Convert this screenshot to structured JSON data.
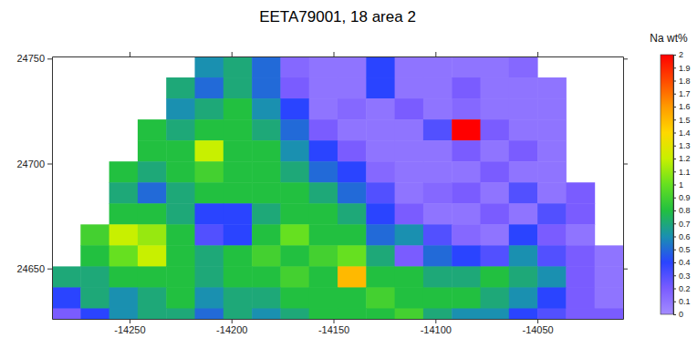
{
  "chart_data": {
    "type": "heatmap",
    "title": "EETA79001, 18 area 2",
    "x": [
      -14281,
      -14267,
      -14253,
      -14239,
      -14225,
      -14211,
      -14197,
      -14183,
      -14169,
      -14155,
      -14141,
      -14127,
      -14113,
      -14099,
      -14085,
      -14071,
      -14057,
      -14043,
      -14029,
      -14015
    ],
    "y": [
      24746,
      24736,
      24726,
      24716,
      24706,
      24696,
      24686,
      24676,
      24666,
      24656,
      24646,
      24636,
      24626
    ],
    "z": [
      [
        null,
        null,
        null,
        null,
        null,
        0.6,
        0.7,
        0.5,
        0.15,
        0.1,
        0.1,
        0.4,
        0.1,
        0.1,
        0.1,
        0.1,
        0.15,
        null,
        null,
        null
      ],
      [
        null,
        null,
        null,
        null,
        0.7,
        0.5,
        0.7,
        0.5,
        0.2,
        0.1,
        0.1,
        0.4,
        0.1,
        0.1,
        0.2,
        0.1,
        0.1,
        0.1,
        null,
        null
      ],
      [
        null,
        null,
        null,
        null,
        0.6,
        0.7,
        0.8,
        0.6,
        0.4,
        0.1,
        0.15,
        0.1,
        0.2,
        0.1,
        0.15,
        0.1,
        0.1,
        0.1,
        null,
        null
      ],
      [
        null,
        null,
        null,
        0.8,
        0.7,
        0.8,
        0.8,
        0.7,
        0.5,
        0.2,
        0.1,
        0.1,
        0.1,
        0.3,
        2.0,
        0.2,
        0.1,
        0.1,
        null,
        null
      ],
      [
        null,
        null,
        null,
        0.8,
        0.8,
        1.2,
        0.8,
        0.8,
        0.6,
        0.4,
        0.2,
        0.1,
        0.1,
        0.1,
        0.2,
        0.1,
        0.2,
        0.1,
        null,
        null
      ],
      [
        null,
        null,
        0.8,
        0.7,
        0.8,
        0.9,
        0.8,
        0.8,
        0.7,
        0.5,
        0.4,
        0.15,
        0.1,
        0.1,
        0.1,
        0.2,
        0.1,
        0.1,
        null,
        null
      ],
      [
        null,
        null,
        0.7,
        0.5,
        0.7,
        0.8,
        0.8,
        0.8,
        0.8,
        0.7,
        0.5,
        0.3,
        0.1,
        0.15,
        0.2,
        0.1,
        0.3,
        0.1,
        0.2,
        null
      ],
      [
        null,
        null,
        0.8,
        0.8,
        0.7,
        0.4,
        0.4,
        0.7,
        0.8,
        0.8,
        0.7,
        0.4,
        0.2,
        0.1,
        0.1,
        0.2,
        0.1,
        0.3,
        0.2,
        null
      ],
      [
        null,
        0.9,
        1.2,
        1.1,
        0.8,
        0.3,
        0.4,
        0.8,
        1.0,
        0.8,
        0.8,
        0.5,
        0.6,
        0.3,
        0.15,
        0.1,
        0.4,
        0.2,
        0.1,
        null
      ],
      [
        null,
        0.8,
        1.0,
        1.2,
        0.8,
        0.7,
        0.8,
        0.9,
        0.8,
        0.9,
        1.0,
        0.7,
        0.2,
        0.5,
        0.4,
        0.3,
        0.6,
        0.3,
        0.2,
        0.1
      ],
      [
        0.7,
        0.7,
        0.8,
        0.8,
        0.8,
        0.7,
        0.8,
        0.8,
        0.9,
        0.8,
        1.5,
        0.8,
        0.8,
        0.7,
        0.7,
        0.8,
        0.7,
        0.6,
        0.2,
        0.1
      ],
      [
        0.4,
        0.7,
        0.6,
        0.7,
        0.8,
        0.6,
        0.7,
        0.7,
        0.8,
        0.8,
        0.8,
        0.9,
        0.8,
        0.8,
        0.8,
        0.7,
        0.6,
        0.4,
        0.2,
        0.1
      ],
      [
        0.2,
        0.4,
        0.6,
        0.7,
        0.7,
        0.5,
        0.7,
        0.6,
        0.7,
        0.8,
        0.8,
        0.8,
        0.9,
        0.7,
        0.6,
        0.6,
        0.4,
        0.3,
        0.2,
        0.2
      ]
    ],
    "xlim": [
      -14288,
      -14008
    ],
    "ylim": [
      24626,
      24751
    ],
    "xticks": [
      -14250,
      -14200,
      -14150,
      -14100,
      -14050
    ],
    "yticks": [
      24650,
      24700,
      24750
    ],
    "colorbar": {
      "label": "Na wt%",
      "range": [
        0,
        2
      ],
      "ticks": [
        0,
        0.1,
        0.2,
        0.3,
        0.4,
        0.5,
        0.6,
        0.7,
        0.8,
        0.9,
        1,
        1.1,
        1.2,
        1.3,
        1.4,
        1.5,
        1.6,
        1.7,
        1.8,
        1.9,
        2
      ],
      "colors": [
        "#a48cff",
        "#7a5cff",
        "#2a44ff",
        "#1a90b0",
        "#22c040",
        "#66e020",
        "#c8f000",
        "#ffd800",
        "#ff9a00",
        "#ff4a00",
        "#ff0000"
      ]
    }
  }
}
